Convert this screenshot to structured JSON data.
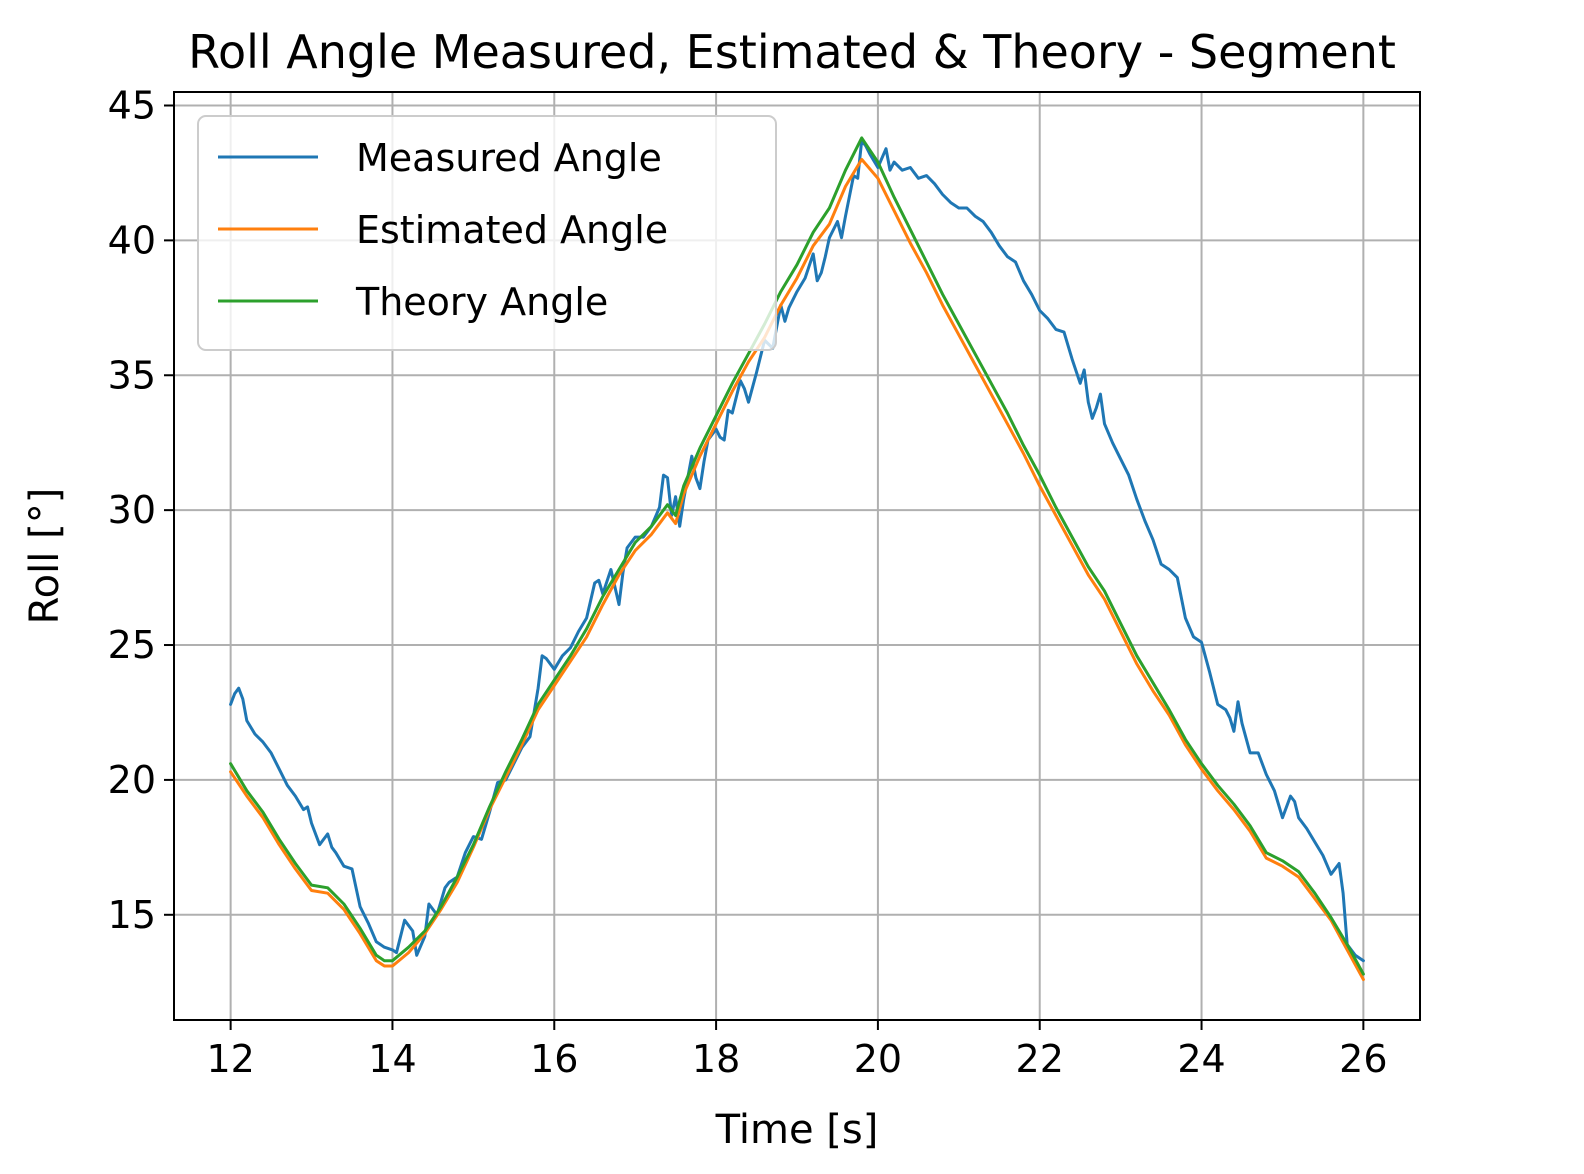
{
  "chart_data": {
    "type": "line",
    "title": "Roll Angle Measured, Estimated & Theory - Segment",
    "xlabel": "Time [s]",
    "ylabel": "Roll [°]",
    "xlim": [
      11.3,
      26.7
    ],
    "ylim": [
      11.1,
      45.5
    ],
    "xticks": [
      12,
      14,
      16,
      18,
      20,
      22,
      24,
      26
    ],
    "yticks": [
      15,
      20,
      25,
      30,
      35,
      40,
      45
    ],
    "grid": true,
    "legend_position": "top-left",
    "series": [
      {
        "name": "Measured Angle",
        "color": "#1f77b4",
        "points": [
          [
            12.0,
            22.8
          ],
          [
            12.05,
            23.2
          ],
          [
            12.1,
            23.4
          ],
          [
            12.15,
            23.0
          ],
          [
            12.2,
            22.2
          ],
          [
            12.3,
            21.7
          ],
          [
            12.4,
            21.4
          ],
          [
            12.5,
            21.0
          ],
          [
            12.6,
            20.4
          ],
          [
            12.7,
            19.8
          ],
          [
            12.8,
            19.4
          ],
          [
            12.9,
            18.9
          ],
          [
            12.95,
            19.0
          ],
          [
            13.0,
            18.4
          ],
          [
            13.1,
            17.6
          ],
          [
            13.2,
            18.0
          ],
          [
            13.25,
            17.5
          ],
          [
            13.3,
            17.3
          ],
          [
            13.4,
            16.8
          ],
          [
            13.5,
            16.7
          ],
          [
            13.6,
            15.3
          ],
          [
            13.7,
            14.7
          ],
          [
            13.8,
            14.0
          ],
          [
            13.9,
            13.8
          ],
          [
            14.0,
            13.7
          ],
          [
            14.05,
            13.6
          ],
          [
            14.15,
            14.8
          ],
          [
            14.25,
            14.4
          ],
          [
            14.3,
            13.5
          ],
          [
            14.4,
            14.2
          ],
          [
            14.45,
            15.4
          ],
          [
            14.55,
            15.0
          ],
          [
            14.65,
            16.0
          ],
          [
            14.7,
            16.2
          ],
          [
            14.8,
            16.4
          ],
          [
            14.9,
            17.3
          ],
          [
            15.0,
            17.9
          ],
          [
            15.1,
            17.8
          ],
          [
            15.2,
            18.8
          ],
          [
            15.3,
            19.9
          ],
          [
            15.4,
            20.0
          ],
          [
            15.5,
            20.6
          ],
          [
            15.6,
            21.2
          ],
          [
            15.7,
            21.6
          ],
          [
            15.8,
            23.4
          ],
          [
            15.85,
            24.6
          ],
          [
            15.9,
            24.5
          ],
          [
            16.0,
            24.1
          ],
          [
            16.1,
            24.6
          ],
          [
            16.2,
            24.9
          ],
          [
            16.3,
            25.5
          ],
          [
            16.4,
            26.0
          ],
          [
            16.5,
            27.3
          ],
          [
            16.55,
            27.4
          ],
          [
            16.6,
            26.9
          ],
          [
            16.7,
            27.8
          ],
          [
            16.8,
            26.5
          ],
          [
            16.85,
            27.7
          ],
          [
            16.9,
            28.6
          ],
          [
            17.0,
            29.0
          ],
          [
            17.1,
            29.0
          ],
          [
            17.2,
            29.4
          ],
          [
            17.3,
            30.1
          ],
          [
            17.35,
            31.3
          ],
          [
            17.4,
            31.2
          ],
          [
            17.45,
            29.8
          ],
          [
            17.5,
            30.5
          ],
          [
            17.55,
            29.4
          ],
          [
            17.6,
            30.4
          ],
          [
            17.7,
            32.0
          ],
          [
            17.75,
            31.2
          ],
          [
            17.8,
            30.8
          ],
          [
            17.85,
            31.8
          ],
          [
            17.9,
            32.6
          ],
          [
            18.0,
            33.0
          ],
          [
            18.05,
            32.7
          ],
          [
            18.1,
            32.6
          ],
          [
            18.15,
            33.7
          ],
          [
            18.2,
            33.6
          ],
          [
            18.3,
            34.8
          ],
          [
            18.35,
            34.5
          ],
          [
            18.4,
            34.0
          ],
          [
            18.5,
            35.1
          ],
          [
            18.6,
            36.3
          ],
          [
            18.7,
            36.0
          ],
          [
            18.8,
            37.6
          ],
          [
            18.85,
            37.0
          ],
          [
            18.9,
            37.5
          ],
          [
            19.0,
            38.1
          ],
          [
            19.1,
            38.6
          ],
          [
            19.2,
            39.5
          ],
          [
            19.25,
            38.5
          ],
          [
            19.3,
            38.8
          ],
          [
            19.35,
            39.4
          ],
          [
            19.4,
            40.1
          ],
          [
            19.5,
            40.7
          ],
          [
            19.55,
            40.1
          ],
          [
            19.6,
            40.9
          ],
          [
            19.7,
            42.4
          ],
          [
            19.75,
            42.3
          ],
          [
            19.8,
            43.7
          ],
          [
            19.85,
            43.5
          ],
          [
            19.9,
            43.2
          ],
          [
            20.0,
            42.7
          ],
          [
            20.1,
            43.4
          ],
          [
            20.15,
            42.6
          ],
          [
            20.2,
            42.9
          ],
          [
            20.3,
            42.6
          ],
          [
            20.4,
            42.7
          ],
          [
            20.5,
            42.3
          ],
          [
            20.6,
            42.4
          ],
          [
            20.7,
            42.1
          ],
          [
            20.8,
            41.7
          ],
          [
            20.9,
            41.4
          ],
          [
            21.0,
            41.2
          ],
          [
            21.1,
            41.2
          ],
          [
            21.2,
            40.9
          ],
          [
            21.3,
            40.7
          ],
          [
            21.4,
            40.3
          ],
          [
            21.5,
            39.8
          ],
          [
            21.6,
            39.4
          ],
          [
            21.7,
            39.2
          ],
          [
            21.8,
            38.5
          ],
          [
            21.9,
            38.0
          ],
          [
            22.0,
            37.4
          ],
          [
            22.1,
            37.1
          ],
          [
            22.2,
            36.7
          ],
          [
            22.3,
            36.6
          ],
          [
            22.4,
            35.6
          ],
          [
            22.5,
            34.7
          ],
          [
            22.55,
            35.2
          ],
          [
            22.6,
            34.0
          ],
          [
            22.65,
            33.4
          ],
          [
            22.7,
            33.8
          ],
          [
            22.75,
            34.3
          ],
          [
            22.8,
            33.2
          ],
          [
            22.9,
            32.5
          ],
          [
            23.0,
            31.9
          ],
          [
            23.1,
            31.3
          ],
          [
            23.2,
            30.4
          ],
          [
            23.3,
            29.6
          ],
          [
            23.4,
            28.9
          ],
          [
            23.5,
            28.0
          ],
          [
            23.6,
            27.8
          ],
          [
            23.7,
            27.5
          ],
          [
            23.8,
            26.0
          ],
          [
            23.9,
            25.3
          ],
          [
            24.0,
            25.1
          ],
          [
            24.1,
            24.0
          ],
          [
            24.2,
            22.8
          ],
          [
            24.3,
            22.6
          ],
          [
            24.35,
            22.3
          ],
          [
            24.4,
            21.8
          ],
          [
            24.45,
            22.9
          ],
          [
            24.5,
            22.1
          ],
          [
            24.6,
            21.0
          ],
          [
            24.7,
            21.0
          ],
          [
            24.8,
            20.2
          ],
          [
            24.9,
            19.6
          ],
          [
            25.0,
            18.6
          ],
          [
            25.1,
            19.4
          ],
          [
            25.15,
            19.2
          ],
          [
            25.2,
            18.6
          ],
          [
            25.3,
            18.2
          ],
          [
            25.4,
            17.7
          ],
          [
            25.5,
            17.2
          ],
          [
            25.6,
            16.5
          ],
          [
            25.7,
            16.9
          ],
          [
            25.75,
            15.8
          ],
          [
            25.8,
            13.9
          ],
          [
            25.9,
            13.5
          ],
          [
            26.0,
            13.3
          ]
        ]
      },
      {
        "name": "Estimated Angle",
        "color": "#ff7f0e",
        "points": [
          [
            12.0,
            20.3
          ],
          [
            12.2,
            19.4
          ],
          [
            12.4,
            18.6
          ],
          [
            12.6,
            17.6
          ],
          [
            12.8,
            16.7
          ],
          [
            13.0,
            15.9
          ],
          [
            13.2,
            15.8
          ],
          [
            13.4,
            15.2
          ],
          [
            13.6,
            14.3
          ],
          [
            13.8,
            13.3
          ],
          [
            13.9,
            13.1
          ],
          [
            14.0,
            13.1
          ],
          [
            14.2,
            13.6
          ],
          [
            14.4,
            14.3
          ],
          [
            14.6,
            15.2
          ],
          [
            14.8,
            16.2
          ],
          [
            15.0,
            17.5
          ],
          [
            15.2,
            18.9
          ],
          [
            15.4,
            20.1
          ],
          [
            15.6,
            21.3
          ],
          [
            15.8,
            22.6
          ],
          [
            16.0,
            23.5
          ],
          [
            16.2,
            24.4
          ],
          [
            16.4,
            25.3
          ],
          [
            16.6,
            26.5
          ],
          [
            16.8,
            27.6
          ],
          [
            17.0,
            28.5
          ],
          [
            17.2,
            29.1
          ],
          [
            17.4,
            29.9
          ],
          [
            17.5,
            29.5
          ],
          [
            17.6,
            30.6
          ],
          [
            17.8,
            32.0
          ],
          [
            18.0,
            33.2
          ],
          [
            18.2,
            34.4
          ],
          [
            18.4,
            35.5
          ],
          [
            18.6,
            36.4
          ],
          [
            18.8,
            37.6
          ],
          [
            19.0,
            38.6
          ],
          [
            19.2,
            39.8
          ],
          [
            19.4,
            40.6
          ],
          [
            19.6,
            42.0
          ],
          [
            19.8,
            43.0
          ],
          [
            20.0,
            42.3
          ],
          [
            20.2,
            41.1
          ],
          [
            20.4,
            39.9
          ],
          [
            20.6,
            38.8
          ],
          [
            20.8,
            37.6
          ],
          [
            21.0,
            36.5
          ],
          [
            21.2,
            35.4
          ],
          [
            21.4,
            34.3
          ],
          [
            21.6,
            33.2
          ],
          [
            21.8,
            32.1
          ],
          [
            22.0,
            30.9
          ],
          [
            22.2,
            29.8
          ],
          [
            22.4,
            28.7
          ],
          [
            22.6,
            27.6
          ],
          [
            22.8,
            26.7
          ],
          [
            23.0,
            25.5
          ],
          [
            23.2,
            24.3
          ],
          [
            23.4,
            23.3
          ],
          [
            23.6,
            22.4
          ],
          [
            23.8,
            21.3
          ],
          [
            24.0,
            20.4
          ],
          [
            24.2,
            19.6
          ],
          [
            24.4,
            18.9
          ],
          [
            24.6,
            18.1
          ],
          [
            24.8,
            17.1
          ],
          [
            25.0,
            16.8
          ],
          [
            25.2,
            16.4
          ],
          [
            25.4,
            15.6
          ],
          [
            25.6,
            14.8
          ],
          [
            25.8,
            13.7
          ],
          [
            26.0,
            12.6
          ]
        ]
      },
      {
        "name": "Theory Angle",
        "color": "#2ca02c",
        "points": [
          [
            12.0,
            20.6
          ],
          [
            12.2,
            19.6
          ],
          [
            12.4,
            18.8
          ],
          [
            12.6,
            17.8
          ],
          [
            12.8,
            16.9
          ],
          [
            13.0,
            16.1
          ],
          [
            13.2,
            16.0
          ],
          [
            13.4,
            15.4
          ],
          [
            13.6,
            14.5
          ],
          [
            13.8,
            13.5
          ],
          [
            13.9,
            13.3
          ],
          [
            14.0,
            13.3
          ],
          [
            14.2,
            13.8
          ],
          [
            14.4,
            14.4
          ],
          [
            14.6,
            15.3
          ],
          [
            14.8,
            16.4
          ],
          [
            15.0,
            17.6
          ],
          [
            15.2,
            19.0
          ],
          [
            15.4,
            20.3
          ],
          [
            15.6,
            21.5
          ],
          [
            15.8,
            22.8
          ],
          [
            16.0,
            23.7
          ],
          [
            16.2,
            24.6
          ],
          [
            16.4,
            25.6
          ],
          [
            16.6,
            26.8
          ],
          [
            16.8,
            27.8
          ],
          [
            17.0,
            28.8
          ],
          [
            17.2,
            29.4
          ],
          [
            17.4,
            30.2
          ],
          [
            17.5,
            29.8
          ],
          [
            17.6,
            30.9
          ],
          [
            17.8,
            32.3
          ],
          [
            18.0,
            33.5
          ],
          [
            18.2,
            34.7
          ],
          [
            18.4,
            35.8
          ],
          [
            18.6,
            36.9
          ],
          [
            18.8,
            38.1
          ],
          [
            19.0,
            39.1
          ],
          [
            19.2,
            40.3
          ],
          [
            19.4,
            41.2
          ],
          [
            19.6,
            42.6
          ],
          [
            19.8,
            43.8
          ],
          [
            20.0,
            42.9
          ],
          [
            20.2,
            41.6
          ],
          [
            20.4,
            40.4
          ],
          [
            20.6,
            39.2
          ],
          [
            20.8,
            38.0
          ],
          [
            21.0,
            36.9
          ],
          [
            21.2,
            35.8
          ],
          [
            21.4,
            34.7
          ],
          [
            21.6,
            33.6
          ],
          [
            21.8,
            32.4
          ],
          [
            22.0,
            31.3
          ],
          [
            22.2,
            30.1
          ],
          [
            22.4,
            29.0
          ],
          [
            22.6,
            27.9
          ],
          [
            22.8,
            27.0
          ],
          [
            23.0,
            25.8
          ],
          [
            23.2,
            24.6
          ],
          [
            23.4,
            23.6
          ],
          [
            23.6,
            22.6
          ],
          [
            23.8,
            21.5
          ],
          [
            24.0,
            20.6
          ],
          [
            24.2,
            19.8
          ],
          [
            24.4,
            19.1
          ],
          [
            24.6,
            18.3
          ],
          [
            24.8,
            17.3
          ],
          [
            25.0,
            17.0
          ],
          [
            25.2,
            16.6
          ],
          [
            25.4,
            15.8
          ],
          [
            25.6,
            14.9
          ],
          [
            25.8,
            13.9
          ],
          [
            26.0,
            12.8
          ]
        ]
      }
    ]
  }
}
